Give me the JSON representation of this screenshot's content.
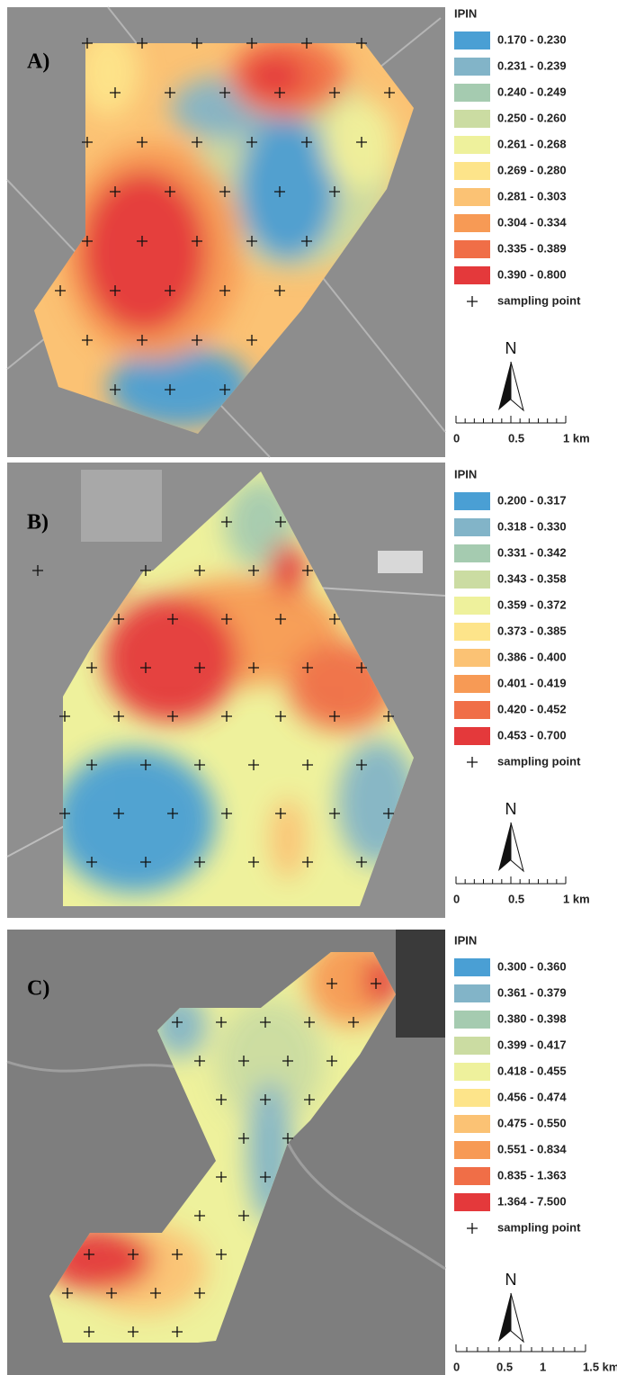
{
  "colors": [
    "#4a9fd4",
    "#82b4c8",
    "#a5cbb0",
    "#cbdca2",
    "#eef19c",
    "#fde48a",
    "#fbc274",
    "#f79a55",
    "#f06e47",
    "#e4393b"
  ],
  "panels": [
    {
      "label": "A)",
      "legend": {
        "title": "IPIN",
        "classes": [
          "0.170 - 0.230",
          "0.231 - 0.239",
          "0.240 - 0.249",
          "0.250 - 0.260",
          "0.261 - 0.268",
          "0.269 - 0.280",
          "0.281 - 0.303",
          "0.304 - 0.334",
          "0.335 - 0.389",
          "0.390 - 0.800"
        ],
        "sampling": "sampling point"
      },
      "north": "N",
      "scale": [
        "0",
        "0.5",
        "1 km"
      ]
    },
    {
      "label": "B)",
      "legend": {
        "title": "IPIN",
        "classes": [
          "0.200 - 0.317",
          "0.318 - 0.330",
          "0.331 - 0.342",
          "0.343 - 0.358",
          "0.359 - 0.372",
          "0.373 - 0.385",
          "0.386 - 0.400",
          "0.401 - 0.419",
          "0.420 - 0.452",
          "0.453 - 0.700"
        ],
        "sampling": "sampling point"
      },
      "north": "N",
      "scale": [
        "0",
        "0.5",
        "1 km"
      ]
    },
    {
      "label": "C)",
      "legend": {
        "title": "IPIN",
        "classes": [
          "0.300 - 0.360",
          "0.361 - 0.379",
          "0.380 - 0.398",
          "0.399 - 0.417",
          "0.418 - 0.455",
          "0.456 - 0.474",
          "0.475 - 0.550",
          "0.551 - 0.834",
          "0.835 - 1.363",
          "1.364 - 7.500"
        ],
        "sampling": "sampling point"
      },
      "north": "N",
      "scale": [
        "0",
        "0.5",
        "1",
        "1.5 km"
      ]
    }
  ]
}
